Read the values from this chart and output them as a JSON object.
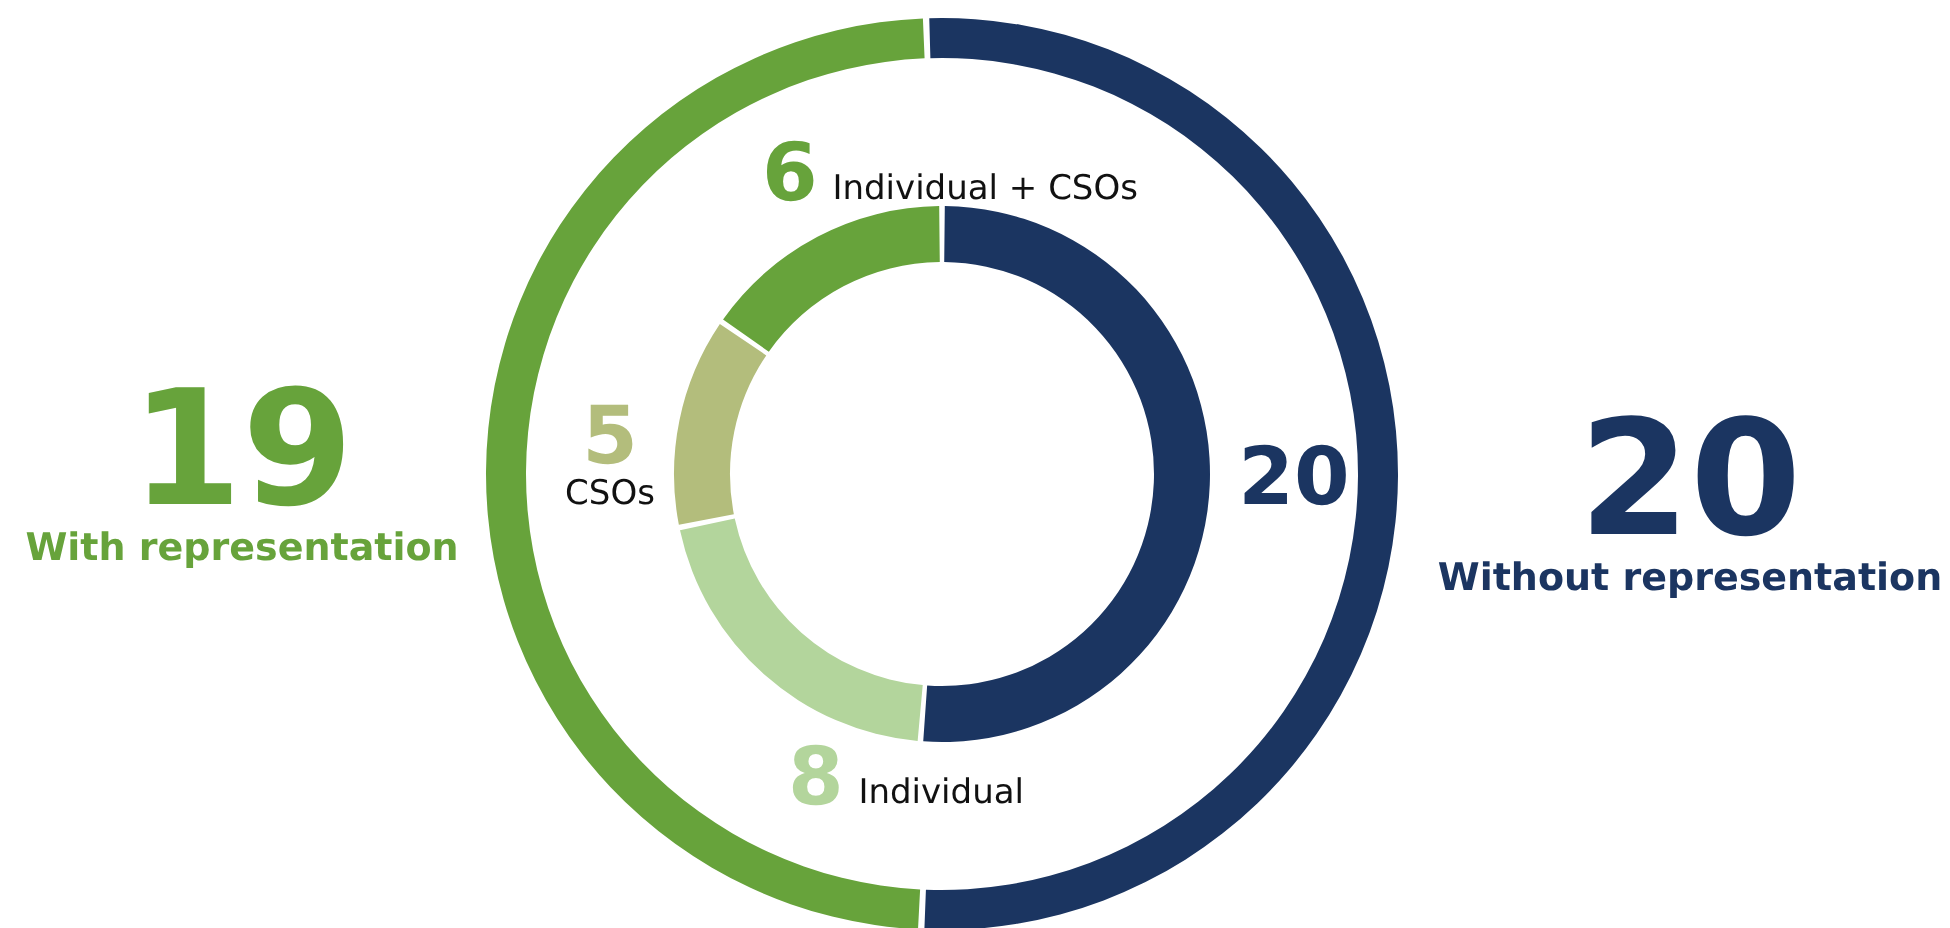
{
  "chart_data": [
    {
      "type": "donut",
      "categories": [
        "Without representation",
        "With representation"
      ],
      "values": [
        20,
        19
      ],
      "colors": [
        "#1b3561",
        "#67a33b"
      ],
      "data_labels": true,
      "legend": false
    },
    {
      "type": "donut",
      "categories": [
        null,
        "Individual",
        "CSOs",
        "Individual + CSOs"
      ],
      "values": [
        20,
        8,
        5,
        6
      ],
      "colors": [
        "#1b3561",
        "#b3d59c",
        "#b3bd7c",
        "#67a33b"
      ],
      "data_labels": true,
      "legend": false
    }
  ]
}
